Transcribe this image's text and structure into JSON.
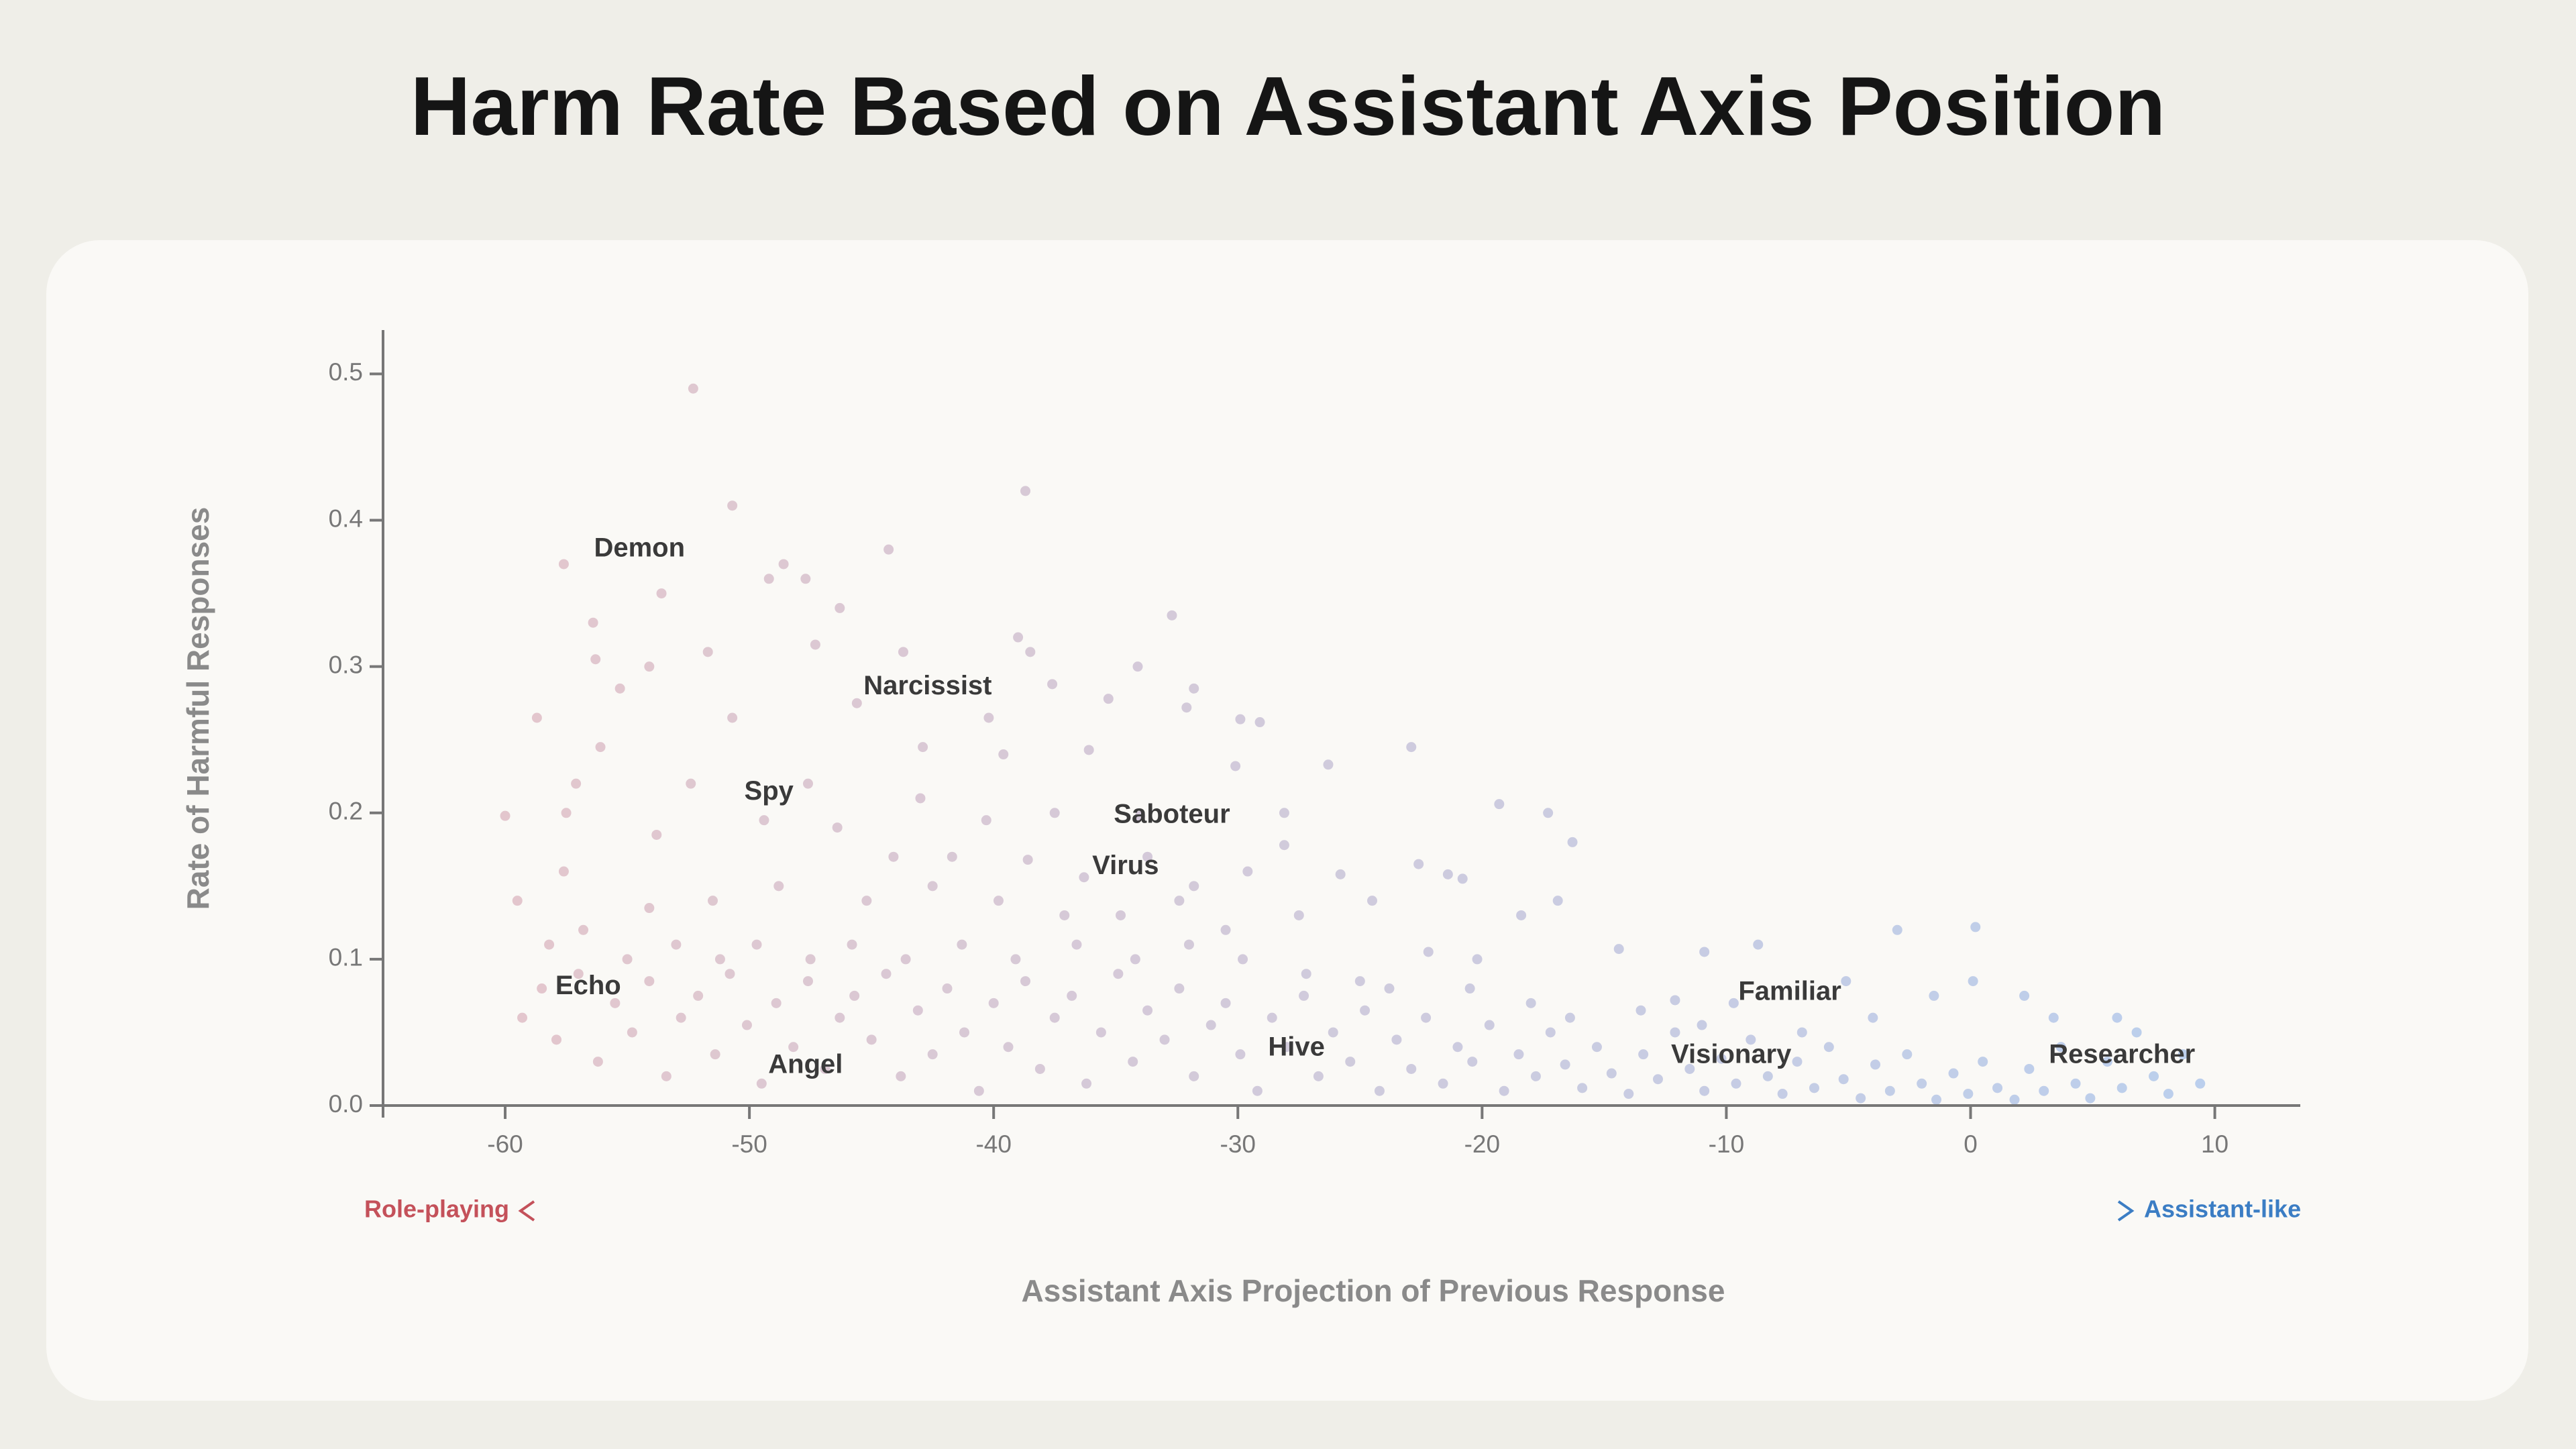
{
  "chart_data": {
    "type": "scatter",
    "title": "Harm Rate Based on Assistant Axis Position",
    "xlabel": "Assistant Axis Projection of Previous Response",
    "ylabel": "Rate of Harmful Responses",
    "x_direction": {
      "left": {
        "text": "Role-playing",
        "color": "#c4515a"
      },
      "right": {
        "text": "Assistant-like",
        "color": "#3b7dc4"
      }
    },
    "color_scale": [
      "#d9a3ae",
      "#8db3ea"
    ],
    "xlim": [
      -65,
      13.5
    ],
    "xticks": [
      -60,
      -50,
      -40,
      -30,
      -20,
      -10,
      0,
      10
    ],
    "ylim": [
      0,
      0.53
    ],
    "yticks": [
      {
        "value": 0,
        "label": "0.0"
      },
      0.1,
      0.2,
      0.3,
      0.4,
      0.5
    ],
    "annotations": [
      {
        "text": "Demon",
        "x": -54.5,
        "y": 0.38
      },
      {
        "text": "Narcissist",
        "x": -42.7,
        "y": 0.286
      },
      {
        "text": "Spy",
        "x": -49.2,
        "y": 0.214
      },
      {
        "text": "Saboteur",
        "x": -32.7,
        "y": 0.198
      },
      {
        "text": "Virus",
        "x": -34.6,
        "y": 0.163
      },
      {
        "text": "Echo",
        "x": -56.6,
        "y": 0.081
      },
      {
        "text": "Angel",
        "x": -47.7,
        "y": 0.027
      },
      {
        "text": "Hive",
        "x": -27.6,
        "y": 0.039
      },
      {
        "text": "Familiar",
        "x": -7.4,
        "y": 0.077
      },
      {
        "text": "Visionary",
        "x": -9.8,
        "y": 0.034
      },
      {
        "text": "Researcher",
        "x": 6.2,
        "y": 0.034
      }
    ],
    "x": [
      -52.3,
      -50.7,
      -38.7,
      -44.3,
      -57.6,
      -53.6,
      -49.2,
      -48.6,
      -47.7,
      -56.4,
      -46.3,
      -32.7,
      -39.0,
      -56.3,
      -54.1,
      -51.7,
      -47.3,
      -43.7,
      -38.5,
      -34.1,
      -31.8,
      -58.7,
      -55.3,
      -50.7,
      -45.6,
      -40.2,
      -37.6,
      -35.3,
      -32.1,
      -29.9,
      -29.1,
      -56.1,
      -42.9,
      -39.6,
      -36.1,
      -30.1,
      -26.3,
      -22.9,
      -57.1,
      -52.4,
      -47.6,
      -43.0,
      -40.3,
      -37.5,
      -34.0,
      -28.1,
      -19.3,
      -17.3,
      -16.3,
      -60.0,
      -57.5,
      -53.8,
      -49.4,
      -46.4,
      -44.1,
      -41.7,
      -38.6,
      -36.3,
      -33.7,
      -31.8,
      -29.6,
      -28.1,
      -25.8,
      -22.6,
      -21.4,
      -20.8,
      -59.5,
      -57.6,
      -54.1,
      -51.5,
      -48.8,
      -45.2,
      -42.5,
      -39.8,
      -37.1,
      -34.8,
      -32.4,
      -30.5,
      -27.5,
      -24.5,
      -18.4,
      -16.9,
      -58.2,
      -56.8,
      -55.0,
      -53.0,
      -51.2,
      -49.7,
      -47.5,
      -45.8,
      -43.6,
      -41.3,
      -39.1,
      -36.6,
      -34.2,
      -32.0,
      -29.8,
      -27.2,
      -25.0,
      -22.2,
      -20.2,
      -14.4,
      -10.9,
      -8.7,
      -3.0,
      0.2,
      -59.3,
      -58.5,
      -57.9,
      -57.0,
      -56.2,
      -55.5,
      -54.8,
      -54.1,
      -53.4,
      -52.8,
      -52.1,
      -51.4,
      -50.8,
      -50.1,
      -49.5,
      -48.9,
      -48.2,
      -47.6,
      -46.9,
      -46.3,
      -45.7,
      -45.0,
      -44.4,
      -43.8,
      -43.1,
      -42.5,
      -41.9,
      -41.2,
      -40.6,
      -40.0,
      -39.4,
      -38.7,
      -38.1,
      -37.5,
      -36.8,
      -36.2,
      -35.6,
      -34.9,
      -34.3,
      -33.7,
      -33.0,
      -32.4,
      -31.8,
      -31.1,
      -30.5,
      -29.9,
      -29.2,
      -28.6,
      -28.0,
      -27.3,
      -26.7,
      -26.1,
      -25.4,
      -24.8,
      -24.2,
      -23.5,
      -22.9,
      -22.3,
      -21.6,
      -21.0,
      -20.4,
      -19.7,
      -19.1,
      -18.5,
      -17.8,
      -17.2,
      -16.6,
      -15.9,
      -15.3,
      -14.7,
      -14.0,
      -13.4,
      -12.8,
      -12.1,
      -11.5,
      -10.9,
      -10.2,
      -9.6,
      -9.0,
      -8.3,
      -7.7,
      -7.1,
      -6.4,
      -5.8,
      -5.2,
      -4.5,
      -3.9,
      -3.3,
      -2.6,
      -2.0,
      -1.4,
      -0.7,
      -0.1,
      0.5,
      1.1,
      1.8,
      2.4,
      3.0,
      3.7,
      4.3,
      4.9,
      5.6,
      6.2,
      6.8,
      7.5,
      8.1,
      8.7,
      9.4,
      2.2,
      3.4,
      6.0,
      0.1,
      -1.5,
      -5.1,
      -9.7,
      -12.1,
      -6.9,
      -11.0,
      -13.5,
      -16.4,
      -18.0,
      -20.5,
      -23.8,
      -4.0
    ],
    "values": [
      0.49,
      0.41,
      0.42,
      0.38,
      0.37,
      0.35,
      0.36,
      0.37,
      0.36,
      0.33,
      0.34,
      0.335,
      0.32,
      0.305,
      0.3,
      0.31,
      0.315,
      0.31,
      0.31,
      0.3,
      0.285,
      0.265,
      0.285,
      0.265,
      0.275,
      0.265,
      0.288,
      0.278,
      0.272,
      0.264,
      0.262,
      0.245,
      0.245,
      0.24,
      0.243,
      0.232,
      0.233,
      0.245,
      0.22,
      0.22,
      0.22,
      0.21,
      0.195,
      0.2,
      0.198,
      0.2,
      0.206,
      0.2,
      0.18,
      0.198,
      0.2,
      0.185,
      0.195,
      0.19,
      0.17,
      0.17,
      0.168,
      0.156,
      0.17,
      0.15,
      0.16,
      0.178,
      0.158,
      0.165,
      0.158,
      0.155,
      0.14,
      0.16,
      0.135,
      0.14,
      0.15,
      0.14,
      0.15,
      0.14,
      0.13,
      0.13,
      0.14,
      0.12,
      0.13,
      0.14,
      0.13,
      0.14,
      0.11,
      0.12,
      0.1,
      0.11,
      0.1,
      0.11,
      0.1,
      0.11,
      0.1,
      0.11,
      0.1,
      0.11,
      0.1,
      0.11,
      0.1,
      0.09,
      0.085,
      0.105,
      0.1,
      0.107,
      0.105,
      0.11,
      0.12,
      0.122,
      0.06,
      0.08,
      0.045,
      0.09,
      0.03,
      0.07,
      0.05,
      0.085,
      0.02,
      0.06,
      0.075,
      0.035,
      0.09,
      0.055,
      0.015,
      0.07,
      0.04,
      0.085,
      0.025,
      0.06,
      0.075,
      0.045,
      0.09,
      0.02,
      0.065,
      0.035,
      0.08,
      0.05,
      0.01,
      0.07,
      0.04,
      0.085,
      0.025,
      0.06,
      0.075,
      0.015,
      0.05,
      0.09,
      0.03,
      0.065,
      0.045,
      0.08,
      0.02,
      0.055,
      0.07,
      0.035,
      0.01,
      0.06,
      0.04,
      0.075,
      0.02,
      0.05,
      0.03,
      0.065,
      0.01,
      0.045,
      0.025,
      0.06,
      0.015,
      0.04,
      0.03,
      0.055,
      0.01,
      0.035,
      0.02,
      0.05,
      0.028,
      0.012,
      0.04,
      0.022,
      0.008,
      0.035,
      0.018,
      0.05,
      0.025,
      0.01,
      0.032,
      0.015,
      0.045,
      0.02,
      0.008,
      0.03,
      0.012,
      0.04,
      0.018,
      0.005,
      0.028,
      0.01,
      0.035,
      0.015,
      0.004,
      0.022,
      0.008,
      0.03,
      0.012,
      0.004,
      0.025,
      0.01,
      0.04,
      0.015,
      0.005,
      0.03,
      0.012,
      0.05,
      0.02,
      0.008,
      0.035,
      0.015,
      0.075,
      0.06,
      0.06,
      0.085,
      0.075,
      0.085,
      0.07,
      0.072,
      0.05,
      0.055,
      0.065,
      0.06,
      0.07,
      0.08,
      0.08,
      0.06
    ]
  }
}
